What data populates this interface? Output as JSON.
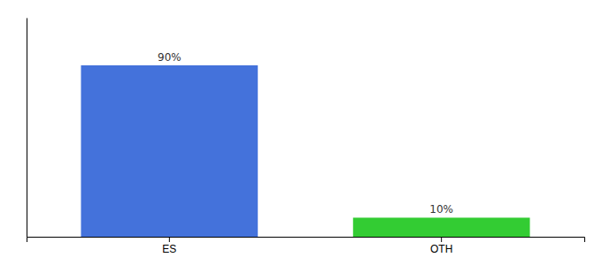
{
  "chart_data": {
    "type": "bar",
    "categories": [
      "ES",
      "OTH"
    ],
    "values": [
      90,
      10
    ],
    "value_labels": [
      "90%",
      "10%"
    ],
    "data_labels": true,
    "colors": [
      "#4472db",
      "#33cc33"
    ],
    "ylim": [
      0,
      115
    ],
    "tick_labels": "x",
    "grid": false
  }
}
